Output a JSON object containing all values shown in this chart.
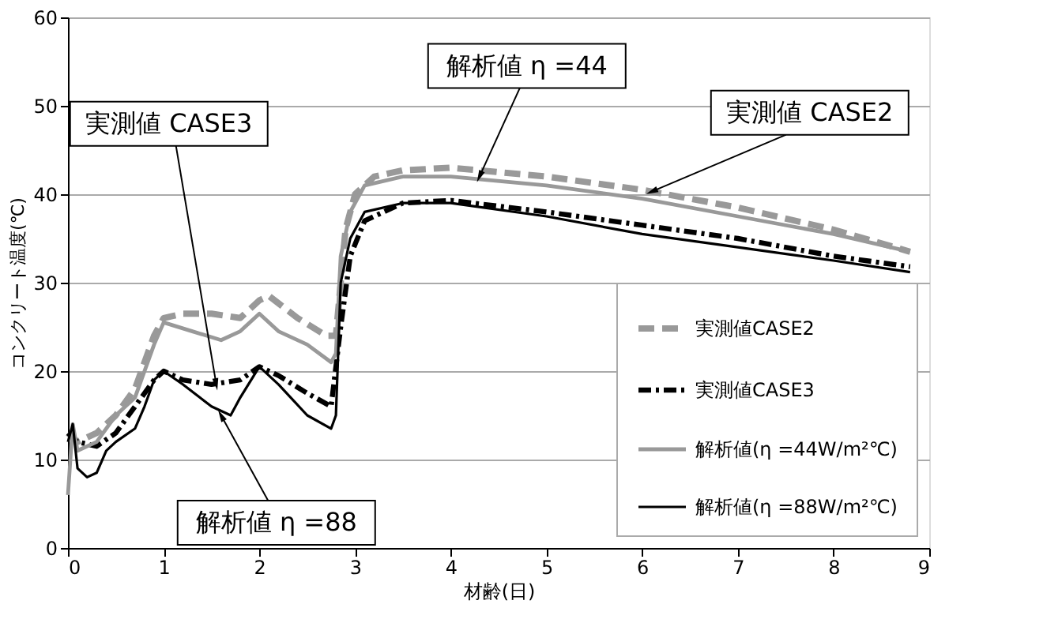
{
  "chart_data": {
    "type": "line",
    "xlabel": "材齢(日)",
    "ylabel": "コンクリート温度(℃)",
    "xlim": [
      0,
      9
    ],
    "xticks": [
      0,
      1,
      2,
      3,
      4,
      5,
      6,
      7,
      8,
      9
    ],
    "ylim": [
      0,
      60
    ],
    "yticks": [
      0,
      10,
      20,
      30,
      40,
      50,
      60
    ],
    "grid": "y",
    "legend": "bottom right",
    "series": [
      {
        "name": "実測値CASE2",
        "color": "#999999",
        "line_style": "dashed",
        "x": [
          0,
          0.1,
          0.3,
          0.5,
          0.7,
          0.9,
          1.0,
          1.2,
          1.5,
          1.8,
          2.0,
          2.1,
          2.4,
          2.7,
          2.8,
          2.85,
          2.9,
          3.0,
          3.2,
          3.5,
          4.0,
          5,
          6,
          7,
          8,
          8.8
        ],
        "values": [
          13,
          12,
          13,
          15,
          18,
          24,
          26,
          26.5,
          26.5,
          26,
          28,
          28.5,
          26,
          24,
          24,
          30,
          36,
          40,
          42,
          42.7,
          43,
          42,
          40.5,
          38.5,
          36,
          33.5
        ]
      },
      {
        "name": "実測値CASE3",
        "color": "#000000",
        "line_style": "dotted",
        "x": [
          0,
          0.1,
          0.3,
          0.5,
          0.7,
          0.9,
          1.0,
          1.2,
          1.5,
          1.8,
          2.0,
          2.2,
          2.5,
          2.75,
          2.85,
          2.95,
          3.1,
          3.5,
          4,
          5,
          6,
          7,
          8,
          8.8
        ],
        "values": [
          13,
          12,
          11.5,
          13,
          16,
          19,
          20,
          19,
          18.5,
          19,
          20.5,
          19.5,
          17.5,
          16,
          25,
          33,
          37,
          39,
          39.3,
          38,
          36.5,
          35,
          33,
          31.8
        ]
      },
      {
        "name": "解析値(η =44W/m²℃)",
        "color": "#999999",
        "line_style": "solid",
        "x": [
          0,
          0.05,
          0.1,
          0.3,
          0.5,
          0.7,
          0.9,
          1.0,
          1.3,
          1.6,
          1.8,
          2.0,
          2.2,
          2.5,
          2.75,
          2.8,
          2.85,
          2.95,
          3.1,
          3.5,
          4,
          5,
          6,
          7,
          8,
          8.8
        ],
        "values": [
          6,
          14,
          11,
          12,
          15,
          17,
          23,
          25.5,
          24.5,
          23.5,
          24.5,
          26.5,
          24.5,
          23,
          21,
          22,
          33,
          38,
          41,
          42,
          42,
          41,
          39.5,
          37.5,
          35.5,
          33.5
        ]
      },
      {
        "name": "解析値(η =88W/m²℃)",
        "color": "#000000",
        "line_style": "solid",
        "x": [
          0,
          0.05,
          0.1,
          0.2,
          0.3,
          0.4,
          0.5,
          0.7,
          0.8,
          0.9,
          1.0,
          1.2,
          1.5,
          1.7,
          1.8,
          2.0,
          2.2,
          2.5,
          2.75,
          2.8,
          2.85,
          2.95,
          3.1,
          3.5,
          4,
          5,
          6,
          7,
          8,
          8.8
        ],
        "values": [
          12,
          14,
          9,
          8,
          8.5,
          11,
          12,
          13.5,
          16,
          19,
          20,
          18.5,
          16,
          15,
          17,
          20.5,
          18.5,
          15,
          13.5,
          15,
          30,
          35,
          38,
          39,
          39,
          37.5,
          35.5,
          34,
          32.5,
          31.2
        ]
      }
    ],
    "annotations": [
      {
        "text": "実測値 CASE3",
        "x": 1.55,
        "y": 18.5
      },
      {
        "text": "解析値 η =88",
        "x": 1.6,
        "y": 15
      },
      {
        "text": "解析値 η =44",
        "x": 4.3,
        "y": 42
      },
      {
        "text": "実測値 CASE2",
        "x": 6.1,
        "y": 40.3
      }
    ]
  }
}
